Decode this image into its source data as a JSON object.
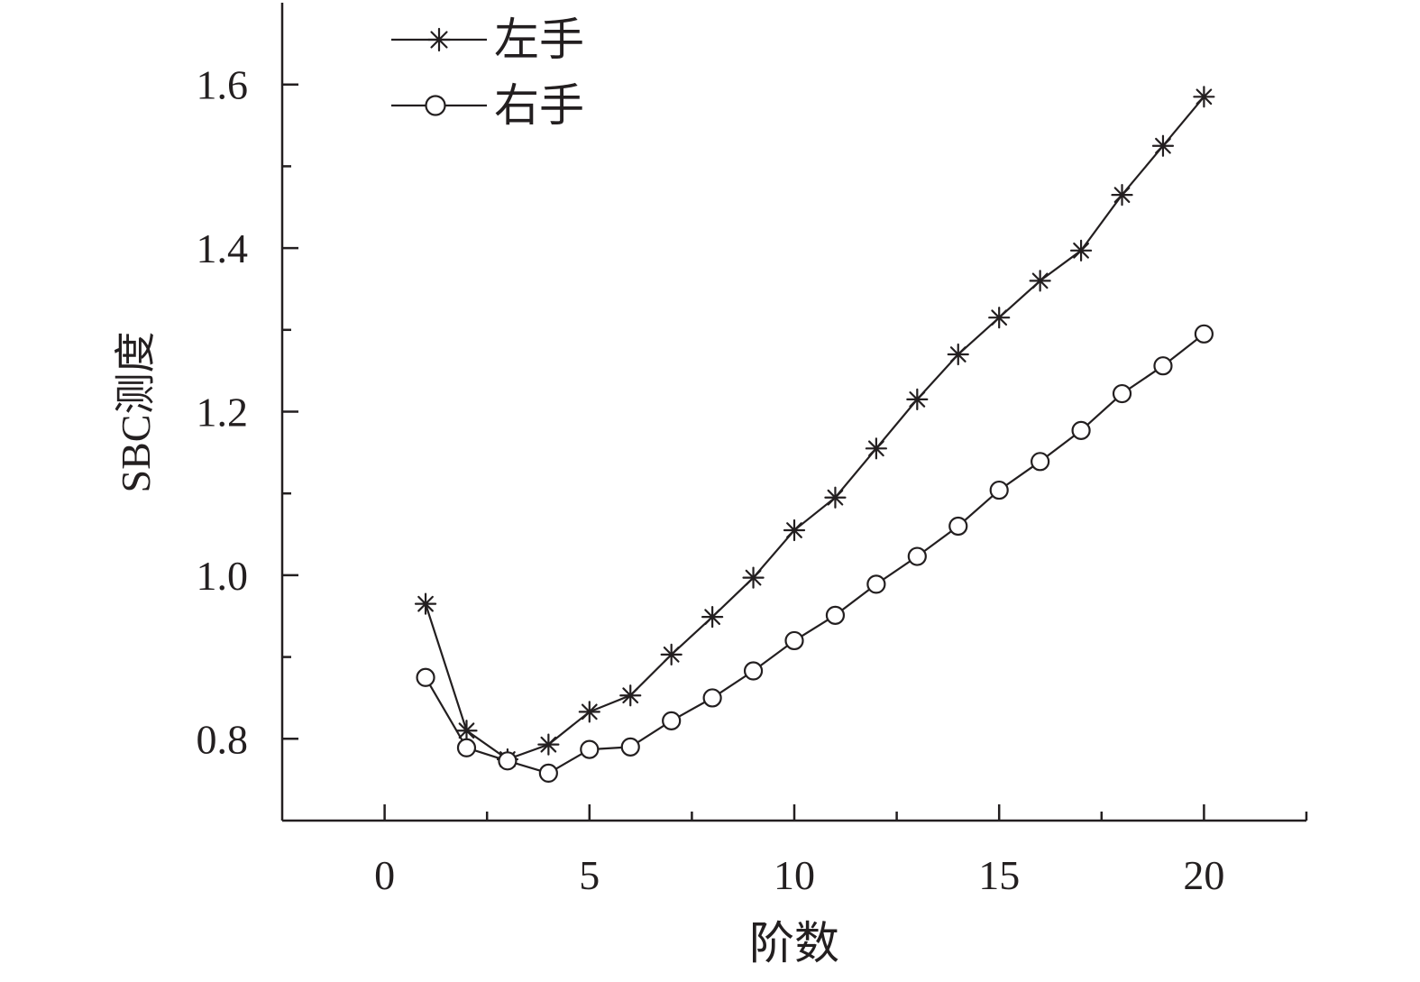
{
  "chart_data": {
    "type": "line",
    "xlabel": "阶数",
    "ylabel": "SBC测度",
    "xlim": [
      -2.5,
      22.5
    ],
    "ylim": [
      0.7,
      1.7
    ],
    "xticks": [
      0,
      5,
      10,
      15,
      20
    ],
    "xtick_labels": [
      "0",
      "5",
      "10",
      "15",
      "20"
    ],
    "xminor_ticks": [
      2.5,
      7.5,
      12.5,
      17.5,
      22.5
    ],
    "yticks": [
      0.8,
      1.0,
      1.2,
      1.4,
      1.6
    ],
    "ytick_labels": [
      "0.8",
      "1.0",
      "1.2",
      "1.4",
      "1.6"
    ],
    "yminor_ticks": [
      0.9,
      1.1,
      1.3,
      1.5
    ],
    "grid": false,
    "legend_position": "top-left",
    "x": [
      1,
      2,
      3,
      4,
      5,
      6,
      7,
      8,
      9,
      10,
      11,
      12,
      13,
      14,
      15,
      16,
      17,
      18,
      19,
      20
    ],
    "series": [
      {
        "name": "左手",
        "marker": "asterisk",
        "values": [
          0.965,
          0.81,
          0.775,
          0.793,
          0.833,
          0.853,
          0.903,
          0.949,
          0.997,
          1.055,
          1.095,
          1.155,
          1.215,
          1.27,
          1.315,
          1.36,
          1.397,
          1.465,
          1.525,
          1.585
        ]
      },
      {
        "name": "右手",
        "marker": "open-circle",
        "values": [
          0.875,
          0.789,
          0.773,
          0.758,
          0.787,
          0.79,
          0.822,
          0.85,
          0.883,
          0.92,
          0.951,
          0.989,
          1.023,
          1.06,
          1.104,
          1.139,
          1.177,
          1.222,
          1.256,
          1.295
        ]
      }
    ],
    "colors": {
      "line": "#231f20",
      "background": "#ffffff"
    }
  }
}
